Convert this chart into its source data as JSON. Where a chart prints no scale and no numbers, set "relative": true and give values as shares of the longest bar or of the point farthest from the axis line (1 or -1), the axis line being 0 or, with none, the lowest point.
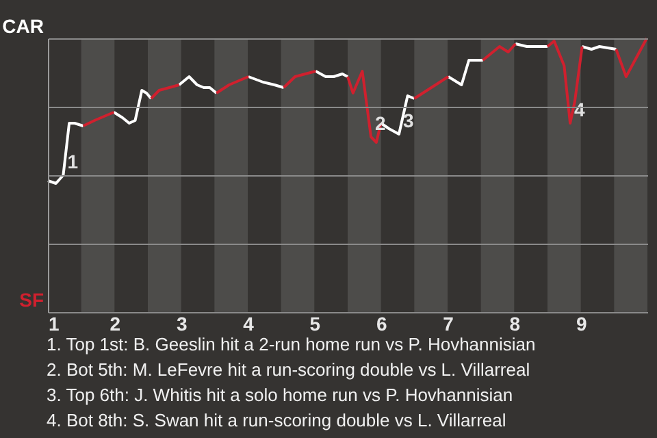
{
  "chart_data": {
    "type": "line",
    "relative": true,
    "x": [
      1.0,
      1.12,
      1.23,
      1.32,
      1.4,
      1.53,
      1.7,
      1.99,
      2.12,
      2.22,
      2.31,
      2.41,
      2.48,
      2.55,
      2.67,
      2.97,
      3.12,
      3.24,
      3.34,
      3.43,
      3.53,
      3.72,
      4.01,
      4.23,
      4.4,
      4.54,
      4.71,
      5.02,
      5.17,
      5.29,
      5.42,
      5.5,
      5.58,
      5.72,
      5.85,
      5.93,
      6.0,
      6.12,
      6.27,
      6.4,
      6.5,
      6.82,
      7.01,
      7.21,
      7.32,
      7.44,
      7.53,
      7.78,
      7.91,
      8.02,
      8.19,
      8.5,
      8.6,
      8.75,
      8.84,
      8.91,
      9.02,
      9.16,
      9.28,
      9.53,
      9.68,
      9.99
    ],
    "series": [
      {
        "name": "CAR",
        "color": "#ffffff",
        "values": [
          0.48,
          0.47,
          0.5,
          0.69,
          0.69,
          0.68,
          null,
          0.73,
          0.71,
          0.69,
          0.7,
          0.81,
          0.8,
          0.78,
          null,
          0.83,
          0.86,
          0.83,
          0.82,
          0.82,
          0.8,
          null,
          0.86,
          0.84,
          0.83,
          0.82,
          null,
          0.88,
          0.86,
          0.86,
          0.87,
          0.86,
          null,
          null,
          null,
          null,
          0.69,
          0.67,
          0.65,
          0.79,
          0.78,
          null,
          0.86,
          0.83,
          0.92,
          0.92,
          0.92,
          null,
          null,
          0.98,
          0.97,
          0.97,
          null,
          null,
          null,
          null,
          0.97,
          0.96,
          0.97,
          0.96,
          null,
          null
        ]
      },
      {
        "name": "SF",
        "color": "#d0202e",
        "values": [
          null,
          null,
          null,
          null,
          null,
          0.68,
          0.7,
          0.73,
          null,
          null,
          null,
          null,
          null,
          0.78,
          0.81,
          0.83,
          null,
          null,
          null,
          null,
          0.8,
          0.83,
          0.86,
          null,
          null,
          0.82,
          0.86,
          0.88,
          null,
          null,
          null,
          0.86,
          0.8,
          0.88,
          0.64,
          0.62,
          0.69,
          null,
          null,
          null,
          0.78,
          0.83,
          0.86,
          null,
          null,
          null,
          0.92,
          0.97,
          0.95,
          0.98,
          null,
          0.97,
          0.99,
          0.9,
          0.69,
          0.77,
          0.97,
          null,
          null,
          0.96,
          0.86,
          1.0
        ]
      }
    ],
    "xlim": [
      1,
      10
    ],
    "xticks": [
      1,
      2,
      3,
      4,
      5,
      6,
      7,
      8,
      9
    ],
    "grid": "y",
    "marker": "none",
    "line_style": "solid",
    "bands": [
      {
        "axis": "x",
        "from": 1.5,
        "to": 2,
        "color": "#4d4c4a"
      },
      {
        "axis": "x",
        "from": 2.5,
        "to": 3,
        "color": "#4d4c4a"
      },
      {
        "axis": "x",
        "from": 3.5,
        "to": 4,
        "color": "#4d4c4a"
      },
      {
        "axis": "x",
        "from": 4.5,
        "to": 5,
        "color": "#4d4c4a"
      },
      {
        "axis": "x",
        "from": 5.5,
        "to": 6,
        "color": "#4d4c4a"
      },
      {
        "axis": "x",
        "from": 6.5,
        "to": 7,
        "color": "#4d4c4a"
      },
      {
        "axis": "x",
        "from": 7.5,
        "to": 8,
        "color": "#4d4c4a"
      },
      {
        "axis": "x",
        "from": 8.5,
        "to": 9,
        "color": "#4d4c4a"
      },
      {
        "axis": "x",
        "from": 9.5,
        "to": 10,
        "color": "#4d4c4a"
      }
    ],
    "annotations": [
      {
        "text": "1",
        "x": 1.23,
        "y": 0.5
      },
      {
        "text": "2",
        "x": 5.85,
        "y": 0.64
      },
      {
        "text": "3",
        "x": 6.27,
        "y": 0.65
      },
      {
        "text": "4",
        "x": 8.84,
        "y": 0.69
      },
      "1. Top 1st: B. Geeslin hit a 2-run home run vs P. Hovhannisian",
      "2. Bot 5th: M. LeFevre hit a run-scoring double vs L. Villarreal",
      "3. Top 6th: J. Whitis hit a solo home run vs P. Hovhannisian",
      "4. Bot 8th: S. Swan hit a run-scoring double vs L. Villarreal"
    ]
  }
}
